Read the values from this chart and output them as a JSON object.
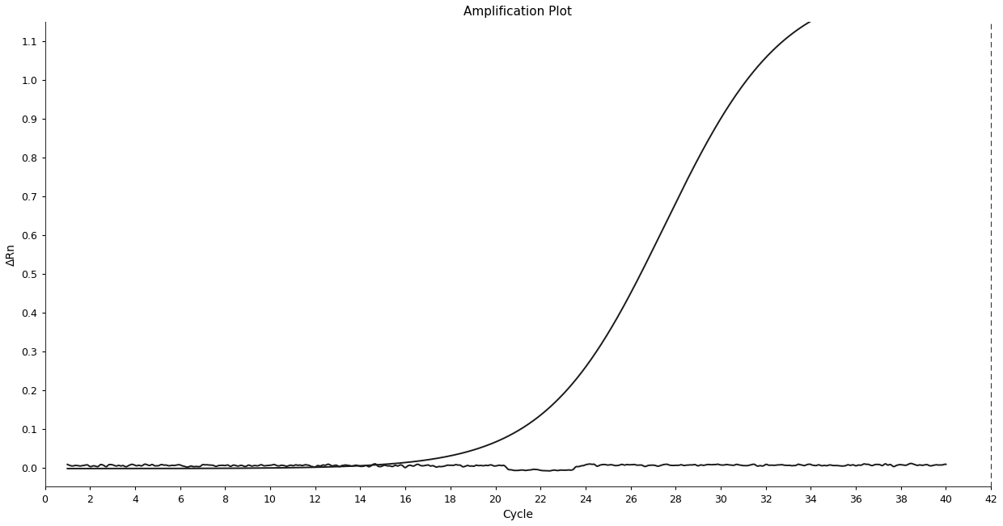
{
  "title": "Amplification Plot",
  "xlabel": "Cycle",
  "ylabel": "ΔRn",
  "xlim": [
    0,
    42
  ],
  "ylim": [
    -0.05,
    1.15
  ],
  "xticks": [
    0,
    2,
    4,
    6,
    8,
    10,
    12,
    14,
    16,
    18,
    20,
    22,
    24,
    26,
    28,
    30,
    32,
    34,
    36,
    38,
    40,
    42
  ],
  "yticks": [
    0.0,
    0.1,
    0.2,
    0.3,
    0.4,
    0.5,
    0.6,
    0.7,
    0.8,
    0.9,
    1.0,
    1.1
  ],
  "sigmoid_midpoint": 27.5,
  "sigmoid_steepness": 0.38,
  "sigmoid_max": 1.25,
  "sigmoid_min": -0.003,
  "line_color": "#1a1a1a",
  "line_width": 1.4,
  "background_color": "#ffffff",
  "title_fontsize": 11,
  "label_fontsize": 10,
  "tick_fontsize": 9,
  "spine_color": "#333333",
  "spine_linewidth": 0.8
}
